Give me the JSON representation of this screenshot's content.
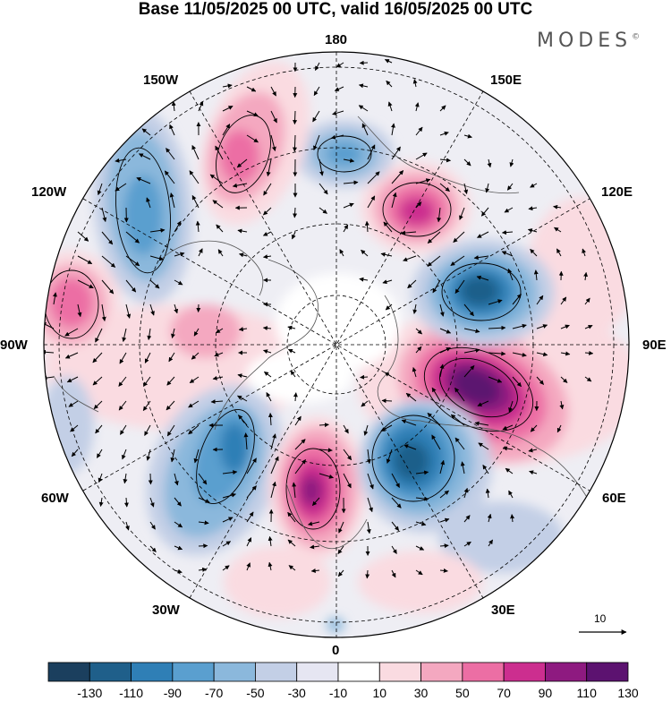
{
  "title": "Base 11/05/2025 00 UTC, valid 16/05/2025 00 UTC",
  "brand": {
    "name": "MODES",
    "mark": "©"
  },
  "longitude_labels": {
    "top": "180",
    "bottom": "0",
    "left": "90W",
    "right": "90E",
    "nw_upper": "150W",
    "nw_lower": "120W",
    "ne_upper": "150E",
    "ne_lower": "120E",
    "sw_upper": "60W",
    "sw_lower": "30W",
    "se_upper": "60E",
    "se_lower": "30E"
  },
  "vector_reference": {
    "value": "10"
  },
  "colorbar": {
    "tick_labels": [
      "-130",
      "-110",
      "-90",
      "-70",
      "-50",
      "-30",
      "-10",
      "10",
      "30",
      "50",
      "70",
      "90",
      "110",
      "130"
    ],
    "colors": [
      "#1b3f5e",
      "#1f5f8a",
      "#2f7fb6",
      "#5a9fcf",
      "#8bb8dc",
      "#c3cfe6",
      "#e6e6f2",
      "#ffffff",
      "#fadbe1",
      "#f4a8c0",
      "#ec6ea4",
      "#cc2e8f",
      "#8e1a80",
      "#5c1270"
    ]
  },
  "map": {
    "projection": "north-polar-stereographic",
    "field": "anomaly",
    "grid": true,
    "anomalies": [
      {
        "sign": "positive",
        "level": 130,
        "region": "east of Siberia / 90E-60E"
      },
      {
        "sign": "negative",
        "level": -110,
        "region": "Siberia 90E-120E"
      },
      {
        "sign": "positive",
        "level": 110,
        "region": "120E-150E"
      },
      {
        "sign": "negative",
        "level": -110,
        "region": "Scandinavia / Russia 30E-60E"
      },
      {
        "sign": "positive",
        "level": 110,
        "region": "North Atlantic 0-30W"
      },
      {
        "sign": "negative",
        "level": -90,
        "region": "Atlantic 30W-60W"
      },
      {
        "sign": "negative",
        "level": -70,
        "region": "North Pacific 150W-180"
      },
      {
        "sign": "positive",
        "level": 90,
        "region": "Alaska / 150W-180"
      },
      {
        "sign": "negative",
        "level": -70,
        "region": "NE Pacific 120W-150W"
      },
      {
        "sign": "positive",
        "level": 70,
        "region": "North America 90W-120W"
      }
    ]
  }
}
